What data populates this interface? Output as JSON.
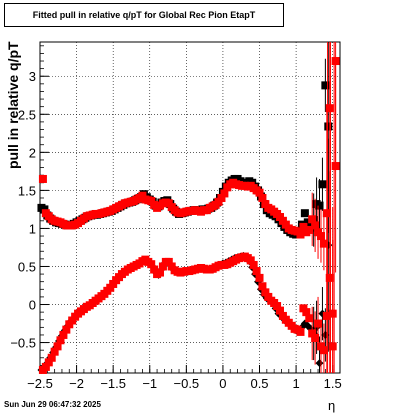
{
  "title": "Fitted pull in relative q/pT for Global Rec Pion EtapT",
  "timestamp": "Sun Jun 29 06:47:32 2025",
  "colors": {
    "black_series": "#000000",
    "red_series": "#ff0000"
  },
  "chart_data": {
    "type": "scatter",
    "title": "Fitted pull in relative q/pT for Global Rec Pion EtapT",
    "xlabel": "η",
    "ylabel": "pull in relative q/pT",
    "xlim": [
      -2.5,
      1.6
    ],
    "ylim": [
      -0.9,
      3.45
    ],
    "xticks": [
      -2.5,
      -2,
      -1.5,
      -1,
      -0.5,
      0,
      0.5,
      1,
      1.5
    ],
    "yticks": [
      -0.5,
      0,
      0.5,
      1,
      1.5,
      2,
      2.5,
      3
    ],
    "grid": true,
    "series": [
      {
        "color": "black",
        "marker": "square",
        "x": [
          -2.48,
          -2.44,
          -2.4,
          -2.36,
          -2.32,
          -2.28,
          -2.24,
          -2.2,
          -2.16,
          -2.12,
          -2.08,
          -2.04,
          -2.0,
          -1.96,
          -1.92,
          -1.88,
          -1.84,
          -1.8,
          -1.76,
          -1.72,
          -1.68,
          -1.64,
          -1.6,
          -1.56,
          -1.52,
          -1.48,
          -1.44,
          -1.4,
          -1.36,
          -1.32,
          -1.28,
          -1.24,
          -1.2,
          -1.16,
          -1.12,
          -1.08,
          -1.04,
          -1.0,
          -0.96,
          -0.92,
          -0.88,
          -0.84,
          -0.8,
          -0.76,
          -0.72,
          -0.68,
          -0.64,
          -0.6,
          -0.56,
          -0.52,
          -0.48,
          -0.44,
          -0.4,
          -0.36,
          -0.32,
          -0.28,
          -0.24,
          -0.2,
          -0.16,
          -0.12,
          -0.08,
          -0.04,
          0.0,
          0.04,
          0.08,
          0.12,
          0.16,
          0.2,
          0.24,
          0.28,
          0.32,
          0.36,
          0.4,
          0.44,
          0.48,
          0.52,
          0.56,
          0.6,
          0.64,
          0.68,
          0.72,
          0.76,
          0.8,
          0.84,
          0.88,
          0.92,
          0.96,
          1.0,
          1.04,
          1.08,
          1.12,
          1.16,
          1.2,
          1.24,
          1.28,
          1.32,
          1.36,
          1.4,
          1.44
        ],
        "y": [
          1.27,
          1.25,
          1.17,
          1.13,
          1.1,
          1.08,
          1.07,
          1.06,
          1.05,
          1.04,
          1.04,
          1.06,
          1.08,
          1.1,
          1.12,
          1.14,
          1.16,
          1.17,
          1.18,
          1.18,
          1.19,
          1.2,
          1.21,
          1.22,
          1.23,
          1.25,
          1.27,
          1.29,
          1.31,
          1.33,
          1.34,
          1.35,
          1.37,
          1.39,
          1.41,
          1.45,
          1.41,
          1.38,
          1.35,
          1.3,
          1.29,
          1.34,
          1.36,
          1.37,
          1.32,
          1.26,
          1.22,
          1.19,
          1.2,
          1.21,
          1.22,
          1.23,
          1.24,
          1.24,
          1.24,
          1.25,
          1.25,
          1.26,
          1.27,
          1.3,
          1.34,
          1.4,
          1.48,
          1.55,
          1.6,
          1.63,
          1.65,
          1.65,
          1.62,
          1.58,
          1.6,
          1.62,
          1.6,
          1.55,
          1.5,
          1.42,
          1.32,
          1.24,
          1.2,
          1.18,
          1.16,
          1.12,
          1.07,
          1.02,
          0.98,
          0.95,
          0.93,
          0.92,
          0.96,
          1.05,
          1.2,
          1.08,
          1.01,
          1.11,
          1.32,
          1.3,
          1.58,
          2.88,
          2.34
        ],
        "y_mid": [
          -0.86,
          -0.82,
          -0.77,
          -0.7,
          -0.63,
          -0.56,
          -0.48,
          -0.41,
          -0.34,
          -0.28,
          -0.22,
          -0.18,
          -0.14,
          -0.1,
          -0.07,
          -0.04,
          -0.02,
          0.0,
          0.03,
          0.06,
          0.09,
          0.12,
          0.16,
          0.2,
          0.25,
          0.3,
          0.34,
          0.38,
          0.42,
          0.45,
          0.47,
          0.49,
          0.51,
          0.53,
          0.55,
          0.58,
          0.57,
          0.55,
          0.5,
          0.42,
          0.39,
          0.46,
          0.54,
          0.55,
          0.52,
          0.46,
          0.44,
          0.43,
          0.43,
          0.43,
          0.43,
          0.44,
          0.45,
          0.46,
          0.47,
          0.47,
          0.47,
          0.46,
          0.46,
          0.47,
          0.49,
          0.52,
          0.54,
          0.55,
          0.57,
          0.59,
          0.61,
          0.62,
          0.63,
          0.64,
          0.62,
          0.57,
          0.49,
          0.4,
          0.3,
          0.2,
          0.13,
          0.08,
          0.05,
          0.02,
          -0.05,
          -0.12,
          -0.15,
          -0.2,
          -0.24,
          -0.26,
          -0.3,
          -0.34,
          -0.35,
          -0.3,
          -0.25,
          -0.28,
          -0.32,
          -0.38,
          -0.3,
          -0.77,
          -0.12,
          -0.4,
          0.78
        ]
      },
      {
        "color": "red",
        "marker": "square",
        "x": [
          -2.46,
          -2.42,
          -2.38,
          -2.34,
          -2.3,
          -2.26,
          -2.22,
          -2.18,
          -2.14,
          -2.1,
          -2.06,
          -2.02,
          -1.98,
          -1.94,
          -1.9,
          -1.86,
          -1.82,
          -1.78,
          -1.74,
          -1.7,
          -1.66,
          -1.62,
          -1.58,
          -1.54,
          -1.5,
          -1.46,
          -1.42,
          -1.38,
          -1.34,
          -1.3,
          -1.26,
          -1.22,
          -1.18,
          -1.14,
          -1.1,
          -1.06,
          -1.02,
          -0.98,
          -0.94,
          -0.9,
          -0.86,
          -0.82,
          -0.78,
          -0.74,
          -0.7,
          -0.66,
          -0.62,
          -0.58,
          -0.54,
          -0.5,
          -0.46,
          -0.42,
          -0.38,
          -0.34,
          -0.3,
          -0.26,
          -0.22,
          -0.18,
          -0.14,
          -0.1,
          -0.06,
          -0.02,
          0.02,
          0.06,
          0.1,
          0.14,
          0.18,
          0.22,
          0.26,
          0.3,
          0.34,
          0.38,
          0.42,
          0.46,
          0.5,
          0.54,
          0.58,
          0.62,
          0.66,
          0.7,
          0.74,
          0.78,
          0.82,
          0.86,
          0.9,
          0.94,
          0.98,
          1.02,
          1.06,
          1.1,
          1.14,
          1.18,
          1.22,
          1.26,
          1.3,
          1.34,
          1.38,
          1.42,
          1.46,
          1.5,
          1.54
        ],
        "y": [
          1.65,
          1.2,
          1.16,
          1.12,
          1.1,
          1.09,
          1.08,
          1.06,
          1.04,
          1.04,
          1.04,
          1.05,
          1.07,
          1.1,
          1.13,
          1.16,
          1.17,
          1.18,
          1.19,
          1.19,
          1.2,
          1.21,
          1.22,
          1.23,
          1.25,
          1.27,
          1.29,
          1.31,
          1.33,
          1.34,
          1.35,
          1.36,
          1.38,
          1.4,
          1.43,
          1.38,
          1.37,
          1.36,
          1.31,
          1.27,
          1.3,
          1.33,
          1.34,
          1.33,
          1.28,
          1.24,
          1.21,
          1.2,
          1.21,
          1.22,
          1.23,
          1.23,
          1.24,
          1.23,
          1.22,
          1.24,
          1.24,
          1.27,
          1.29,
          1.31,
          1.35,
          1.4,
          1.46,
          1.54,
          1.58,
          1.6,
          1.58,
          1.57,
          1.56,
          1.56,
          1.55,
          1.56,
          1.53,
          1.5,
          1.47,
          1.4,
          1.32,
          1.27,
          1.25,
          1.22,
          1.19,
          1.15,
          1.1,
          1.05,
          1.0,
          0.98,
          0.97,
          0.96,
          0.92,
          1.02,
          0.95,
          0.98,
          1.12,
          1.04,
          0.95,
          0.9,
          0.8,
          -0.15,
          0.35,
          -0.12,
          3.2
        ],
        "y_mid": [
          -0.86,
          -0.82,
          -0.76,
          -0.7,
          -0.62,
          -0.55,
          -0.47,
          -0.4,
          -0.33,
          -0.26,
          -0.21,
          -0.16,
          -0.12,
          -0.09,
          -0.06,
          -0.03,
          -0.01,
          0.02,
          0.05,
          0.08,
          0.11,
          0.14,
          0.18,
          0.22,
          0.27,
          0.32,
          0.36,
          0.4,
          0.43,
          0.46,
          0.48,
          0.5,
          0.52,
          0.54,
          0.57,
          0.59,
          0.56,
          0.53,
          0.46,
          0.4,
          0.42,
          0.5,
          0.56,
          0.56,
          0.5,
          0.45,
          0.43,
          0.42,
          0.43,
          0.44,
          0.44,
          0.45,
          0.46,
          0.47,
          0.48,
          0.47,
          0.46,
          0.46,
          0.47,
          0.49,
          0.51,
          0.52,
          0.52,
          0.53,
          0.55,
          0.57,
          0.59,
          0.61,
          0.62,
          0.63,
          0.61,
          0.58,
          0.52,
          0.44,
          0.35,
          0.24,
          0.16,
          0.1,
          0.05,
          0.02,
          -0.02,
          -0.08,
          -0.15,
          -0.2,
          -0.24,
          -0.28,
          -0.32,
          -0.33,
          -0.36,
          -0.05,
          -0.1,
          -0.18,
          -0.38,
          -0.44,
          -0.25,
          -0.55,
          -0.6,
          1.2,
          2.58,
          -0.55,
          1.82
        ]
      }
    ],
    "xlim_note": "",
    "error_bars_large_eta": true
  }
}
